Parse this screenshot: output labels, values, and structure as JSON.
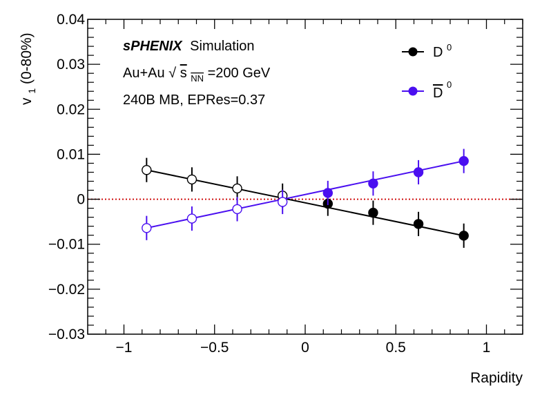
{
  "chart_data": {
    "type": "scatter",
    "xlabel": "Rapidity",
    "ylabel_main": "v",
    "ylabel_sub": "1",
    "ylabel_tail": " (0-80%)",
    "xlim": [
      -1.2,
      1.2
    ],
    "ylim": [
      -0.03,
      0.04
    ],
    "x_ticks": [
      -1,
      -0.5,
      0,
      0.5,
      1
    ],
    "x_tick_labels": [
      "−1",
      "−0.5",
      "0",
      "0.5",
      "1"
    ],
    "y_ticks": [
      -0.03,
      -0.02,
      -0.01,
      0,
      0.01,
      0.02,
      0.03,
      0.04
    ],
    "y_tick_labels": [
      "−0.03",
      "−0.02",
      "−0.01",
      "0",
      "0.01",
      "0.02",
      "0.03",
      "0.04"
    ],
    "reference_line": {
      "y": 0,
      "color": "#cc0000",
      "style": "dotted"
    },
    "annotations": {
      "experiment": "sPHENIX",
      "experiment_suffix": "Simulation",
      "system_prefix": "Au+Au ",
      "sqrt_symbol": "√",
      "s": "s",
      "s_sub": "NN",
      "system_energy": "=200 GeV",
      "stats": "240B MB, EPRes=0.37"
    },
    "legend_placement": "top-right",
    "series": [
      {
        "name": "D",
        "name_sup": "0",
        "color": "#000000",
        "x": [
          -0.875,
          -0.625,
          -0.375,
          -0.125,
          0.125,
          0.375,
          0.625,
          0.875
        ],
        "y": [
          0.0065,
          0.0044,
          0.0024,
          0.0008,
          -0.001,
          -0.003,
          -0.0055,
          -0.0081
        ],
        "yerr": [
          0.0027,
          0.0027,
          0.0027,
          0.0027,
          0.0027,
          0.0027,
          0.0027,
          0.0027
        ],
        "hollow": [
          true,
          true,
          true,
          true,
          false,
          false,
          false,
          false
        ],
        "fit_line": {
          "x": [
            -0.875,
            0.875
          ],
          "y": [
            0.0065,
            -0.0081
          ]
        }
      },
      {
        "name": "D",
        "name_sup": "0",
        "name_overline": true,
        "color": "#4a0ff0",
        "x": [
          -0.875,
          -0.625,
          -0.375,
          -0.125,
          0.125,
          0.375,
          0.625,
          0.875
        ],
        "y": [
          -0.0064,
          -0.0043,
          -0.0022,
          -0.0006,
          0.0014,
          0.0035,
          0.006,
          0.0085
        ],
        "yerr": [
          0.0027,
          0.0027,
          0.0027,
          0.0027,
          0.0027,
          0.0027,
          0.0027,
          0.0027
        ],
        "hollow": [
          true,
          true,
          true,
          true,
          false,
          false,
          false,
          false
        ],
        "fit_line": {
          "x": [
            -0.875,
            0.875
          ],
          "y": [
            -0.0064,
            0.0085
          ]
        }
      }
    ]
  }
}
